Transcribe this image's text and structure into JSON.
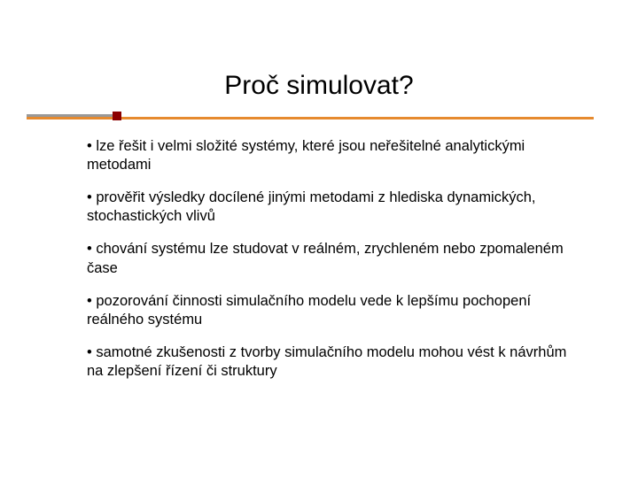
{
  "slide": {
    "title": "Proč simulovat?",
    "bullets": [
      "lze řešit i velmi složité systémy, které jsou neřešitelné analytickými metodami",
      "prověřit výsledky docílené jinými metodami z hlediska dynamických, stochastických vlivů",
      "chování systému lze studovat v reálném, zrychleném nebo zpomaleném čase",
      "pozorování činnosti simulačního modelu vede k lepšímu pochopení reálného systému",
      "samotné zkušenosti z tvorby simulačního modelu mohou vést k návrhům na zlepšení řízení či struktury"
    ],
    "colors": {
      "background": "#ffffff",
      "text": "#000000",
      "line_gray": "#999999",
      "line_orange": "#e68a2e",
      "accent_red": "#8b0000"
    },
    "typography": {
      "title_fontsize": 30,
      "body_fontsize": 16.5,
      "font_family": "Verdana"
    }
  }
}
